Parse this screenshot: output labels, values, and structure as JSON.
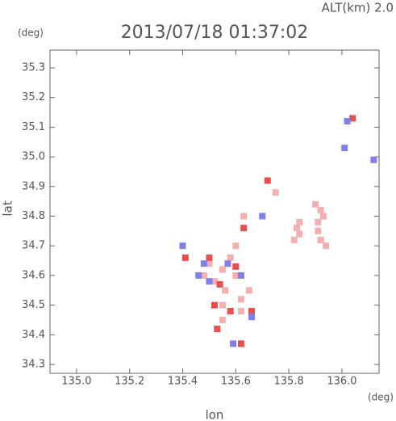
{
  "chart_data": {
    "type": "scatter",
    "title": "2013/07/18 01:37:02",
    "annotation": "ALT(km) 2.0",
    "y_unit": "(deg)",
    "x_unit": "(deg)",
    "x_label": "lon",
    "y_label": "lat",
    "xlim": [
      134.9,
      136.14
    ],
    "ylim": [
      34.27,
      35.36
    ],
    "xticks": [
      {
        "value": 135,
        "label": "135.0"
      },
      135.2,
      135.4,
      135.6,
      135.8,
      {
        "value": 136,
        "label": "136.0"
      }
    ],
    "yticks": [
      34.3,
      34.4,
      34.5,
      34.6,
      34.7,
      34.8,
      34.9,
      {
        "value": 35,
        "label": "35.0"
      },
      35.1,
      35.2,
      35.3
    ],
    "series": [
      {
        "color": "#f4b0b0",
        "x": [
          135.92,
          135.93,
          135.91,
          135.91,
          135.92,
          135.94,
          135.9,
          135.84,
          135.83,
          135.84,
          135.82,
          135.5,
          135.55,
          135.6,
          135.58,
          135.52,
          135.56,
          135.62,
          135.55,
          135.65,
          135.48,
          135.6,
          135.75,
          135.63,
          135.55,
          135.62
        ],
        "y": [
          34.82,
          34.8,
          34.78,
          34.75,
          34.72,
          34.7,
          34.84,
          34.78,
          34.76,
          34.74,
          34.72,
          34.64,
          34.62,
          34.6,
          34.66,
          34.58,
          34.55,
          34.52,
          34.5,
          34.55,
          34.6,
          34.7,
          34.88,
          34.8,
          34.45,
          34.48
        ]
      },
      {
        "color": "#e85050",
        "x": [
          135.6,
          135.54,
          135.52,
          135.58,
          135.66,
          135.53,
          135.5,
          135.72,
          135.63,
          135.62,
          136.04,
          135.41
        ],
        "y": [
          34.63,
          34.57,
          34.5,
          34.48,
          34.48,
          34.42,
          34.66,
          34.92,
          34.76,
          34.37,
          35.13,
          34.66
        ]
      },
      {
        "color": "#8080e8",
        "x": [
          135.57,
          135.48,
          135.5,
          135.62,
          135.66,
          135.59,
          135.4,
          135.7,
          135.46,
          136.02,
          136.01,
          136.12
        ],
        "y": [
          34.64,
          34.64,
          34.58,
          34.6,
          34.46,
          34.37,
          34.7,
          34.8,
          34.6,
          35.12,
          35.03,
          34.99
        ]
      }
    ]
  }
}
